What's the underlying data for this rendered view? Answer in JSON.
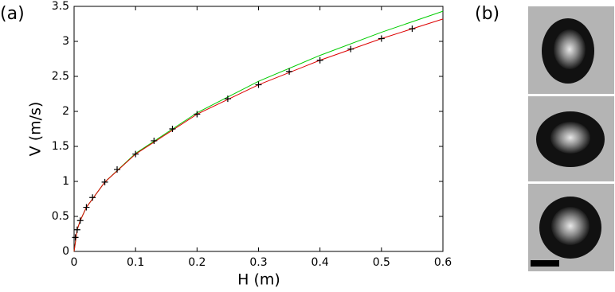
{
  "chart_data": {
    "type": "scatter",
    "panel_label": "(a)",
    "x_label": "H  (m)",
    "y_label": "V  (m/s)",
    "xlim": [
      0,
      0.6
    ],
    "ylim": [
      0,
      3.5
    ],
    "xticks": [
      0,
      0.1,
      0.2,
      0.3,
      0.4,
      0.5,
      0.6
    ],
    "yticks": [
      0,
      0.5,
      1,
      1.5,
      2,
      2.5,
      3,
      3.5
    ],
    "series": [
      {
        "mode": "line",
        "color": "#00cc00",
        "x": [
          0,
          0.005,
          0.01,
          0.02,
          0.05,
          0.1,
          0.2,
          0.3,
          0.4,
          0.5,
          0.6
        ],
        "values": [
          0,
          0.31,
          0.44,
          0.63,
          0.99,
          1.4,
          1.98,
          2.43,
          2.8,
          3.13,
          3.43
        ]
      },
      {
        "mode": "line",
        "color": "#dd0000",
        "x": [
          0,
          0.005,
          0.01,
          0.02,
          0.05,
          0.1,
          0.2,
          0.3,
          0.4,
          0.5,
          0.6
        ],
        "values": [
          0,
          0.31,
          0.44,
          0.63,
          0.99,
          1.39,
          1.96,
          2.38,
          2.73,
          3.04,
          3.32
        ]
      },
      {
        "mode": "marker",
        "color": "#000000",
        "x": [
          0.002,
          0.005,
          0.01,
          0.02,
          0.03,
          0.05,
          0.07,
          0.1,
          0.13,
          0.16,
          0.2,
          0.25,
          0.3,
          0.35,
          0.4,
          0.45,
          0.5,
          0.55
        ],
        "values": [
          0.2,
          0.31,
          0.44,
          0.63,
          0.77,
          0.99,
          1.17,
          1.39,
          1.58,
          1.75,
          1.96,
          2.18,
          2.38,
          2.57,
          2.73,
          2.89,
          3.04,
          3.18
        ]
      }
    ]
  },
  "panel_b": {
    "label": "(b)"
  }
}
